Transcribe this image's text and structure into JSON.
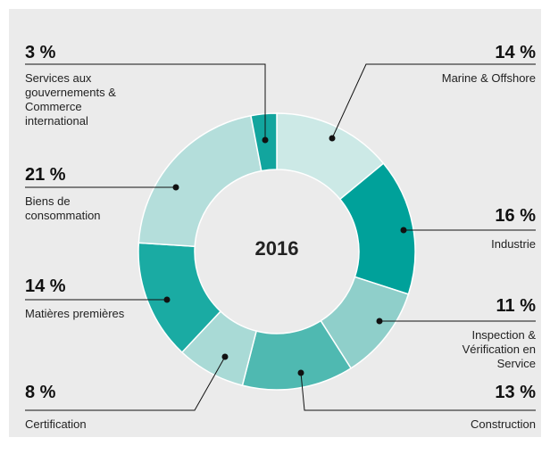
{
  "chart_data": {
    "type": "donut",
    "title": "2016",
    "categories": [
      "Marine & Offshore",
      "Industrie",
      "Inspection & Vérification en Service",
      "Construction",
      "Certification",
      "Matières premières",
      "Biens de consommation",
      "Services aux gouvernements & Commerce international"
    ],
    "values": [
      14,
      16,
      11,
      13,
      8,
      14,
      21,
      3
    ],
    "value_labels": [
      "14 %",
      "16 %",
      "11 %",
      "13 %",
      "8 %",
      "14 %",
      "21 %",
      "3 %"
    ],
    "colors": [
      "#cce9e6",
      "#00a19a",
      "#8fcfca",
      "#4fb9b1",
      "#a9dad6",
      "#1aaba3",
      "#b4dedb",
      "#12a59e"
    ]
  }
}
